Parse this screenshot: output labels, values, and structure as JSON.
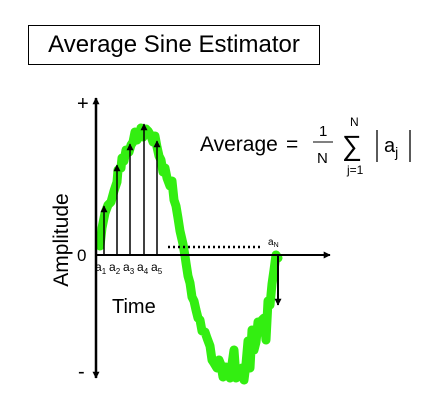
{
  "title": "Average Sine Estimator",
  "axes": {
    "y_label": "Amplitude",
    "x_label": "Time",
    "y_top_tick": "+",
    "y_zero_tick": "0",
    "y_bottom_tick": "-"
  },
  "samples": {
    "base": "a",
    "subscripts": [
      "1",
      "2",
      "3",
      "4",
      "5"
    ],
    "last_subscript": "N"
  },
  "formula": {
    "lhs": "Average",
    "equals": "=",
    "numerator": "1",
    "denominator": "N",
    "sigma": "∑",
    "upper_limit": "N",
    "lower_limit": "j=1",
    "term_base": "a",
    "term_subscript": "j"
  },
  "colors": {
    "signal": "#33ee11",
    "ink": "#000000"
  }
}
